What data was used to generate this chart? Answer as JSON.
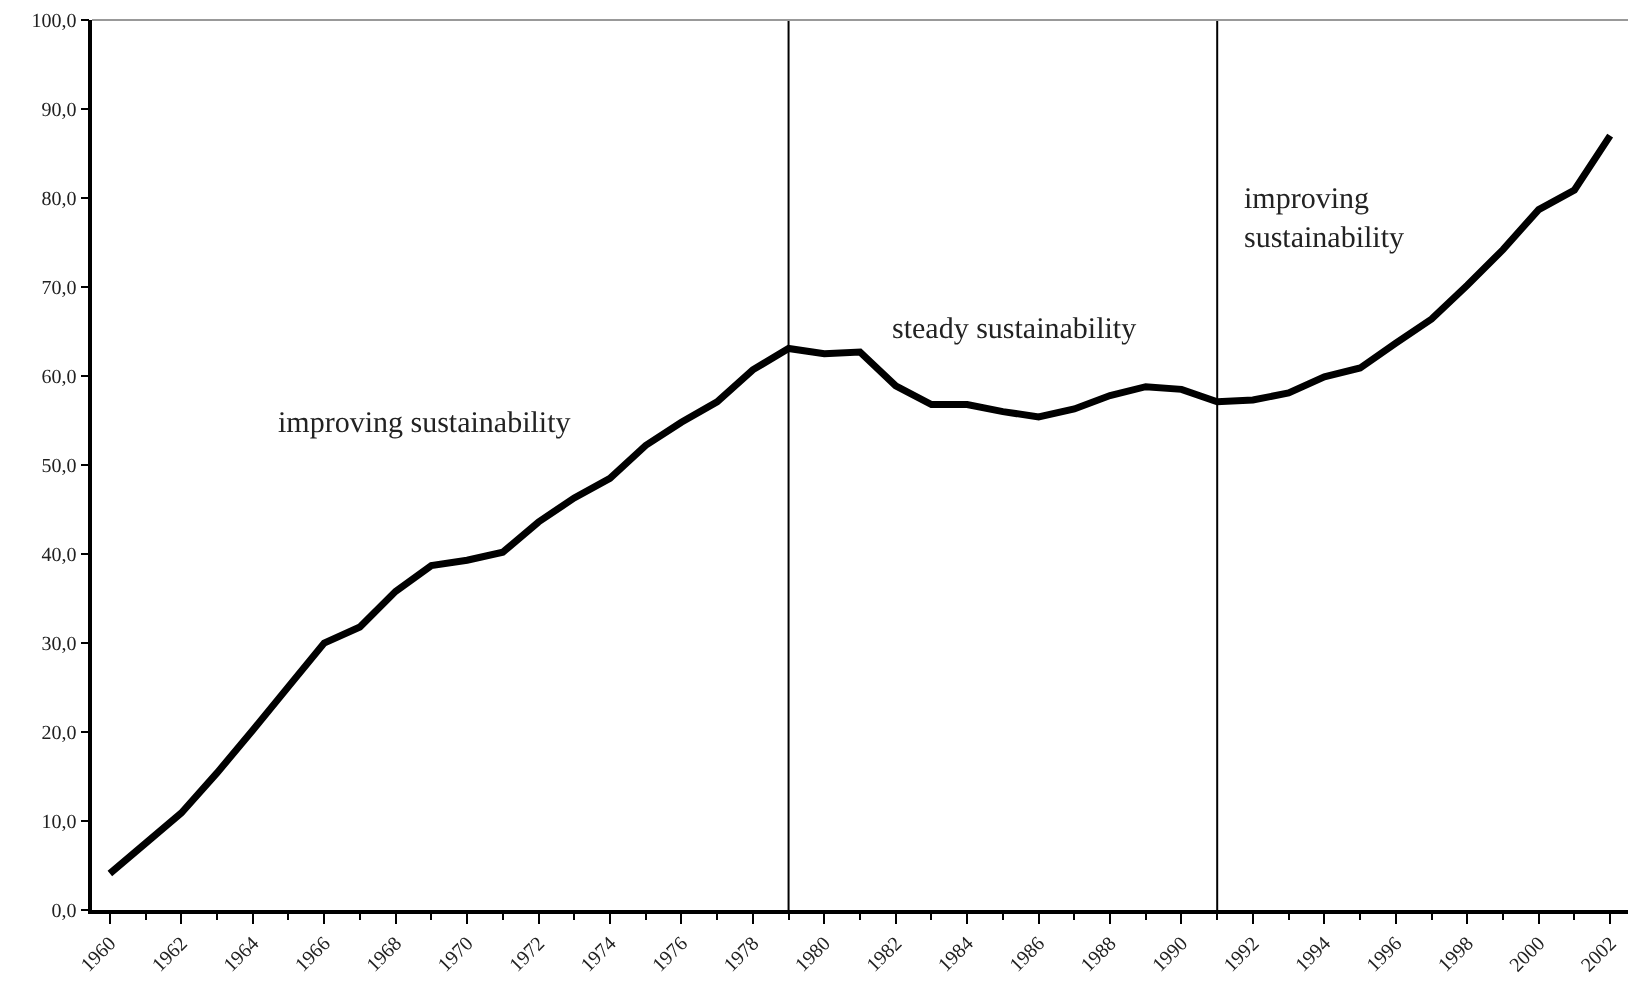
{
  "chart_data": {
    "type": "line",
    "x": [
      1960,
      1961,
      1962,
      1963,
      1964,
      1965,
      1966,
      1967,
      1968,
      1969,
      1970,
      1971,
      1972,
      1973,
      1974,
      1975,
      1976,
      1977,
      1978,
      1979,
      1980,
      1981,
      1982,
      1983,
      1984,
      1985,
      1986,
      1987,
      1988,
      1989,
      1990,
      1991,
      1992,
      1993,
      1994,
      1995,
      1996,
      1997,
      1998,
      1999,
      2000,
      2001,
      2002
    ],
    "series": [
      {
        "color": "#000000",
        "values": [
          4.1,
          7.5,
          10.9,
          15.4,
          20.2,
          25.1,
          30.0,
          31.8,
          35.8,
          38.7,
          39.3,
          40.2,
          43.6,
          46.3,
          48.5,
          52.2,
          54.8,
          57.1,
          60.7,
          63.1,
          62.5,
          62.7,
          58.9,
          56.8,
          56.8,
          56.0,
          55.4,
          56.3,
          57.8,
          58.8,
          58.5,
          57.1,
          57.3,
          58.1,
          59.9,
          60.9,
          63.7,
          66.4,
          70.2,
          74.2,
          78.7,
          80.9,
          87.0
        ]
      }
    ],
    "xlim": [
      1959.5,
      2002.5
    ],
    "xticks": [
      1960,
      1962,
      1964,
      1966,
      1968,
      1970,
      1972,
      1974,
      1976,
      1978,
      1980,
      1982,
      1984,
      1986,
      1988,
      1990,
      1992,
      1994,
      1996,
      1998,
      2000,
      2002
    ],
    "ylim": [
      0,
      100
    ],
    "yticks": [
      {
        "value": 0,
        "label": "0,0"
      },
      {
        "value": 10,
        "label": "10,0"
      },
      {
        "value": 20,
        "label": "20,0"
      },
      {
        "value": 30,
        "label": "30,0"
      },
      {
        "value": 40,
        "label": "40,0"
      },
      {
        "value": 50,
        "label": "50,0"
      },
      {
        "value": 60,
        "label": "60,0"
      },
      {
        "value": 70,
        "label": "70,0"
      },
      {
        "value": 80,
        "label": "80,0"
      },
      {
        "value": 90,
        "label": "90,0"
      },
      {
        "value": 100,
        "label": "100,0"
      }
    ],
    "ref_lines": [
      {
        "axis": "x",
        "value": 1979,
        "color": "#000000"
      },
      {
        "axis": "x",
        "value": 1991,
        "color": "#000000"
      }
    ],
    "annotations": [
      "improving sustainability",
      "steady sustainability",
      "improving sustainability"
    ],
    "marker": "none",
    "line_style": "solid"
  }
}
